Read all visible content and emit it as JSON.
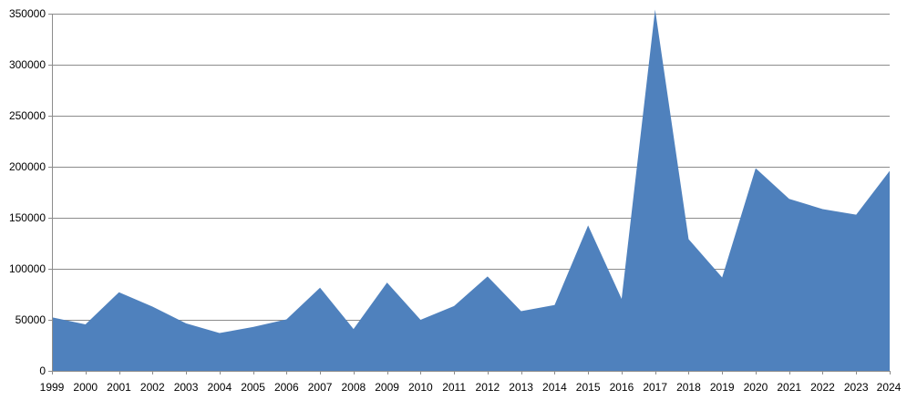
{
  "chart_data": {
    "type": "area",
    "title": "",
    "xlabel": "",
    "ylabel": "",
    "x": [
      "1999",
      "2000",
      "2001",
      "2002",
      "2003",
      "2004",
      "2005",
      "2006",
      "2007",
      "2008",
      "2009",
      "2010",
      "2011",
      "2012",
      "2013",
      "2014",
      "2015",
      "2016",
      "2017",
      "2018",
      "2019",
      "2020",
      "2021",
      "2022",
      "2023",
      "2024"
    ],
    "series": [
      {
        "values": [
          52500,
          45500,
          77000,
          63000,
          46500,
          37000,
          43000,
          50500,
          81500,
          41000,
          86500,
          50000,
          63500,
          92500,
          58500,
          64500,
          142500,
          70500,
          354000,
          129000,
          91500,
          198500,
          168500,
          158500,
          153000,
          196000
        ],
        "color": "#4f81bd"
      }
    ],
    "ylim": [
      0,
      350000
    ],
    "yticks": [
      "0",
      "50000",
      "100000",
      "150000",
      "200000",
      "250000",
      "300000",
      "350000"
    ],
    "ytick_values": [
      0,
      50000,
      100000,
      150000,
      200000,
      250000,
      300000,
      350000
    ],
    "grid": "horizontal",
    "legend": "none"
  }
}
